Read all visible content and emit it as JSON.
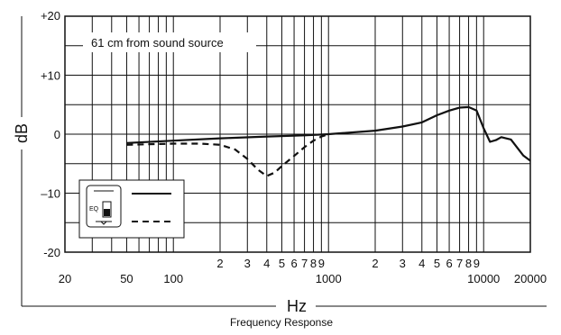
{
  "chart_data": {
    "type": "line",
    "title": "",
    "subtitle": "Frequency Response",
    "xlabel": "Hz",
    "ylabel": "dB",
    "x_scale": "log",
    "xlim": [
      20,
      20000
    ],
    "ylim": [
      -20,
      20
    ],
    "grid": true,
    "y_ticks": [
      {
        "value": 20,
        "label": "+20"
      },
      {
        "value": 10,
        "label": "+10"
      },
      {
        "value": 0,
        "label": "0"
      },
      {
        "value": -10,
        "label": "–10"
      },
      {
        "value": -20,
        "label": "-20"
      }
    ],
    "x_ticks_major": [
      {
        "value": 20,
        "label": "20"
      },
      {
        "value": 50,
        "label": "50"
      },
      {
        "value": 100,
        "label": "100"
      },
      {
        "value": 1000,
        "label": "1000"
      },
      {
        "value": 10000,
        "label": "10000"
      },
      {
        "value": 20000,
        "label": "20000"
      }
    ],
    "x_ticks_minor": [
      {
        "value": 200,
        "label": "2"
      },
      {
        "value": 300,
        "label": "3"
      },
      {
        "value": 400,
        "label": "4"
      },
      {
        "value": 500,
        "label": "5"
      },
      {
        "value": 600,
        "label": "6"
      },
      {
        "value": 700,
        "label": "7"
      },
      {
        "value": 800,
        "label": "8"
      },
      {
        "value": 900,
        "label": "9"
      },
      {
        "value": 2000,
        "label": "2"
      },
      {
        "value": 3000,
        "label": "3"
      },
      {
        "value": 4000,
        "label": "4"
      },
      {
        "value": 5000,
        "label": "5"
      },
      {
        "value": 6000,
        "label": "6"
      },
      {
        "value": 7000,
        "label": "7"
      },
      {
        "value": 8000,
        "label": "8"
      },
      {
        "value": 9000,
        "label": "9"
      }
    ],
    "annotation": "61 cm from sound source",
    "legend": {
      "position": "bottom-left",
      "icon_text": "EQ"
    },
    "series": [
      {
        "style": "solid",
        "x": [
          50,
          100,
          200,
          400,
          700,
          1000,
          2000,
          3000,
          4000,
          5000,
          6000,
          7000,
          8000,
          9000,
          10000,
          11000,
          12000,
          13000,
          15000,
          18000,
          20000
        ],
        "y": [
          -1.5,
          -1.1,
          -0.7,
          -0.4,
          -0.2,
          0,
          0.6,
          1.3,
          2.0,
          3.2,
          4.0,
          4.5,
          4.6,
          4.0,
          1.0,
          -1.3,
          -1.0,
          -0.5,
          -0.9,
          -3.6,
          -4.5
        ]
      },
      {
        "style": "dashed",
        "x": [
          50,
          100,
          150,
          200,
          250,
          300,
          350,
          400,
          450,
          500,
          600,
          700,
          800,
          900,
          1000
        ],
        "y": [
          -1.8,
          -1.6,
          -1.6,
          -1.8,
          -2.6,
          -4.2,
          -6.0,
          -7.1,
          -6.5,
          -5.4,
          -3.7,
          -2.2,
          -1.1,
          -0.4,
          0
        ]
      }
    ]
  }
}
